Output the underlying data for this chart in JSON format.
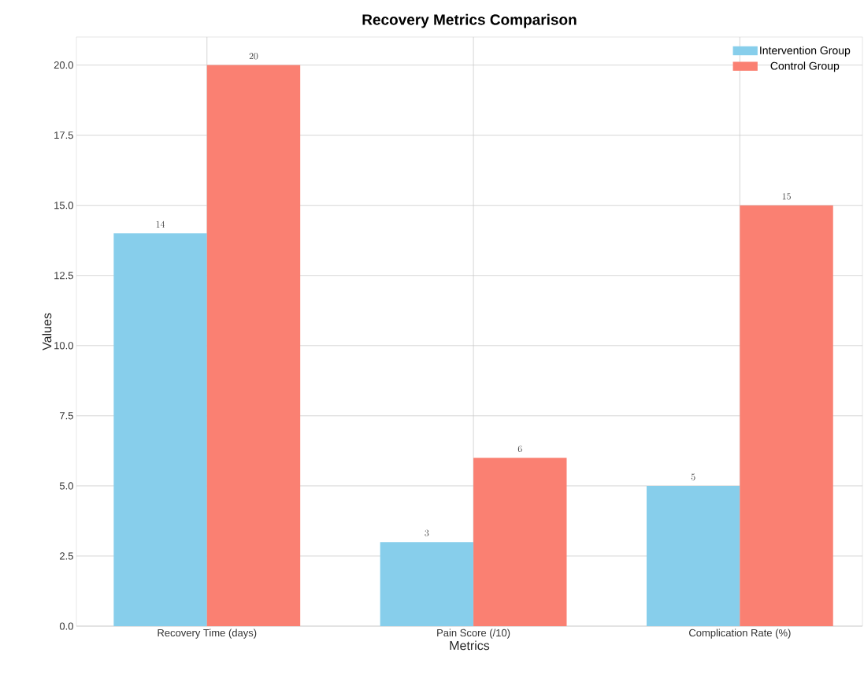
{
  "chart_data": {
    "type": "bar",
    "title": "Recovery Metrics Comparison",
    "xlabel": "Metrics",
    "ylabel": "Values",
    "categories": [
      "Recovery Time (days)",
      "Pain Score (/10)",
      "Complication Rate (%)"
    ],
    "series": [
      {
        "name": "Intervention Group",
        "color": "#87ceeb",
        "values": [
          14,
          3,
          5
        ]
      },
      {
        "name": "Control Group",
        "color": "#fa8072",
        "values": [
          20,
          6,
          15
        ]
      }
    ],
    "ylim": [
      0,
      21
    ],
    "yticks": [
      {
        "value": 0,
        "label": "0.0"
      },
      {
        "value": 2.5,
        "label": "2.5"
      },
      {
        "value": 5,
        "label": "5.0"
      },
      {
        "value": 7.5,
        "label": "7.5"
      },
      {
        "value": 10,
        "label": "10.0"
      },
      {
        "value": 12.5,
        "label": "12.5"
      },
      {
        "value": 15,
        "label": "15.0"
      },
      {
        "value": 17.5,
        "label": "17.5"
      },
      {
        "value": 20,
        "label": "20.0"
      }
    ],
    "grid": true,
    "legend": "top right",
    "data_labels": true
  }
}
